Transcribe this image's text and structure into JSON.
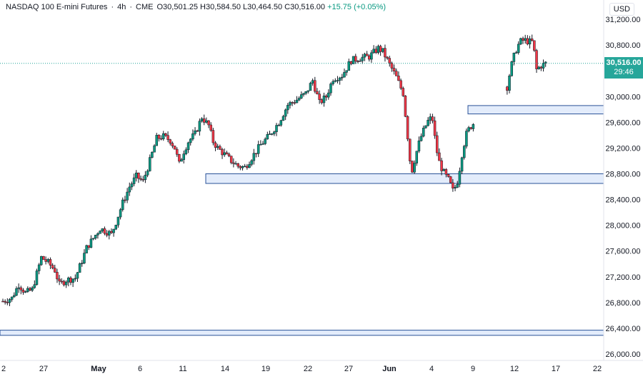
{
  "header": {
    "symbol": "NASDAQ 100 E-mini Futures",
    "interval": "4h",
    "exchange": "CME",
    "open_label": "O",
    "open": "30,501.25",
    "high_label": "H",
    "high": "30,584.50",
    "low_label": "L",
    "low": "30,464.50",
    "close_label": "C",
    "close": "30,516.00",
    "change": "+15.75 (+0.05%)",
    "separator": "·"
  },
  "currency": "USD",
  "last_price": {
    "price": "30,516.00",
    "countdown": "29:46",
    "value": 30516
  },
  "colors": {
    "up": "#089981",
    "down": "#f23645",
    "zone_fill": "#e3ecfb",
    "zone_stroke": "#2a5298",
    "tag": "#26a69a"
  },
  "chart_data": {
    "type": "candlestick",
    "ylim": [
      25900,
      31500
    ],
    "y_ticks": [
      26000,
      26400,
      26800,
      27200,
      27600,
      28000,
      28400,
      28800,
      29200,
      29600,
      30000,
      30400,
      30800,
      31200
    ],
    "y_tick_labels": [
      "26,000.00",
      "26,400.00",
      "26,800.00",
      "27,200.00",
      "27,600.00",
      "28,000.00",
      "28,400.00",
      "28,800.00",
      "29,200.00",
      "29,600.00",
      "30,000.00",
      "30,400.00",
      "30,800.00",
      "31,200.00"
    ],
    "x_tick_labels": [
      "2",
      "27",
      "May",
      "6",
      "11",
      "14",
      "19",
      "22",
      "27",
      "Jun",
      "4",
      "9",
      "12",
      "17",
      "22"
    ],
    "x_tick_bold": [
      false,
      false,
      true,
      false,
      false,
      false,
      false,
      false,
      false,
      true,
      false,
      false,
      false,
      false,
      false
    ],
    "zones": [
      {
        "from_label": "11",
        "y_low": 28650,
        "y_high": 28800
      },
      {
        "from_label": "9",
        "y_low": 29730,
        "y_high": 29860
      },
      {
        "from_label": "2",
        "y_low": 26290,
        "y_high": 26370
      }
    ],
    "price_path": [
      [
        0.0,
        26820
      ],
      [
        2.0,
        26870
      ],
      [
        3.5,
        27080
      ],
      [
        5.0,
        26950
      ],
      [
        6.5,
        27000
      ],
      [
        7.5,
        27250
      ],
      [
        8.5,
        27500
      ],
      [
        10.0,
        27420
      ],
      [
        11.5,
        27300
      ],
      [
        12.5,
        27080
      ],
      [
        14.0,
        27150
      ],
      [
        16.0,
        27180
      ],
      [
        17.5,
        27450
      ],
      [
        18.5,
        27650
      ],
      [
        20.0,
        27800
      ],
      [
        21.5,
        27950
      ],
      [
        23.0,
        27900
      ],
      [
        24.0,
        27860
      ],
      [
        25.0,
        28050
      ],
      [
        26.5,
        28350
      ],
      [
        28.0,
        28600
      ],
      [
        29.5,
        28760
      ],
      [
        31.0,
        28680
      ],
      [
        32.5,
        29000
      ],
      [
        34.0,
        29350
      ],
      [
        35.5,
        29380
      ],
      [
        37.0,
        29320
      ],
      [
        38.0,
        29200
      ],
      [
        39.0,
        28950
      ],
      [
        40.0,
        29150
      ],
      [
        41.0,
        29300
      ],
      [
        42.5,
        29420
      ],
      [
        44.0,
        29680
      ],
      [
        45.5,
        29550
      ],
      [
        46.5,
        29300
      ],
      [
        47.5,
        29200
      ],
      [
        49.0,
        29100
      ],
      [
        50.5,
        29000
      ],
      [
        52.0,
        28920
      ],
      [
        53.5,
        28900
      ],
      [
        55.0,
        29050
      ],
      [
        57.0,
        29250
      ],
      [
        59.0,
        29400
      ],
      [
        61.0,
        29600
      ],
      [
        63.0,
        29870
      ],
      [
        65.0,
        29950
      ],
      [
        67.0,
        30050
      ],
      [
        68.5,
        30250
      ],
      [
        70.0,
        29900
      ],
      [
        71.5,
        30000
      ],
      [
        73.0,
        30280
      ],
      [
        75.0,
        30330
      ],
      [
        77.0,
        30560
      ],
      [
        79.0,
        30600
      ],
      [
        81.0,
        30620
      ],
      [
        83.0,
        30750
      ],
      [
        84.0,
        30700
      ],
      [
        85.5,
        30500
      ],
      [
        87.0,
        30300
      ],
      [
        88.5,
        30050
      ],
      [
        89.3,
        29520
      ],
      [
        90.3,
        28800
      ],
      [
        91.3,
        29100
      ],
      [
        92.3,
        29350
      ],
      [
        93.5,
        29550
      ],
      [
        94.3,
        29660
      ],
      [
        95.0,
        29640
      ],
      [
        95.8,
        29200
      ],
      [
        96.6,
        28950
      ],
      [
        97.6,
        28800
      ],
      [
        98.6,
        28700
      ],
      [
        99.6,
        28520
      ],
      [
        100.6,
        28700
      ],
      [
        101.6,
        29150
      ],
      [
        102.6,
        29450
      ],
      [
        103.6,
        29550
      ],
      [
        104.3,
        29600
      ]
    ],
    "price_path_b": [
      [
        111.5,
        30150
      ],
      [
        112.3,
        30450
      ],
      [
        113.3,
        30700
      ],
      [
        114.3,
        30850
      ],
      [
        115.3,
        30880
      ],
      [
        116.3,
        30850
      ],
      [
        117.2,
        30850
      ],
      [
        118.0,
        30420
      ],
      [
        119.0,
        30480
      ],
      [
        120.0,
        30516
      ]
    ],
    "candles_total": 124
  }
}
